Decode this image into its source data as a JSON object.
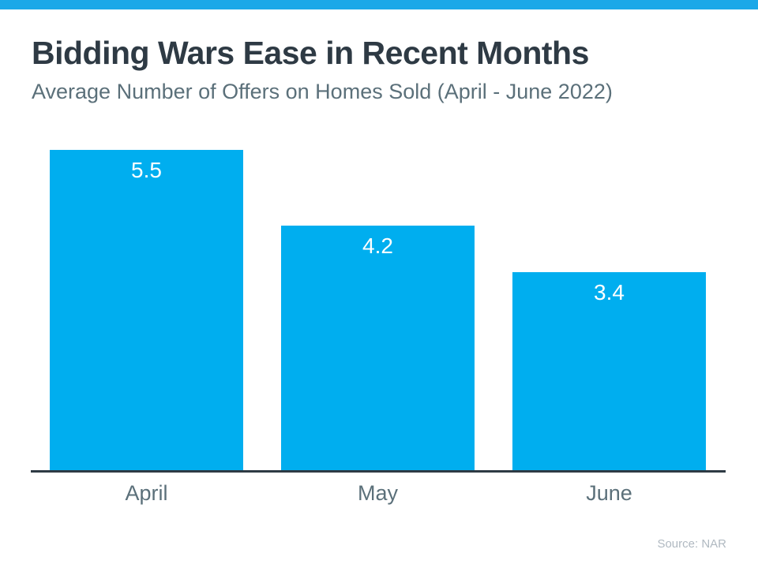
{
  "page": {
    "accent_bar_color": "#1ba8e8",
    "source_note": "Source: NAR"
  },
  "chart_data": {
    "type": "bar",
    "title": "Bidding Wars Ease in Recent Months",
    "subtitle": "Average Number of Offers on Homes Sold (April - June 2022)",
    "categories": [
      "April",
      "May",
      "June"
    ],
    "values": [
      5.5,
      4.2,
      3.4
    ],
    "value_labels": [
      "5.5",
      "4.2",
      "3.4"
    ],
    "bar_color": "#00aeef",
    "value_label_color": "#ffffff",
    "axis_line_color": "#2e3a44",
    "xlabel": "",
    "ylabel": "",
    "ylim": [
      0,
      5.5
    ],
    "grid": false,
    "legend": false,
    "annotations": [
      "Source: NAR"
    ]
  }
}
